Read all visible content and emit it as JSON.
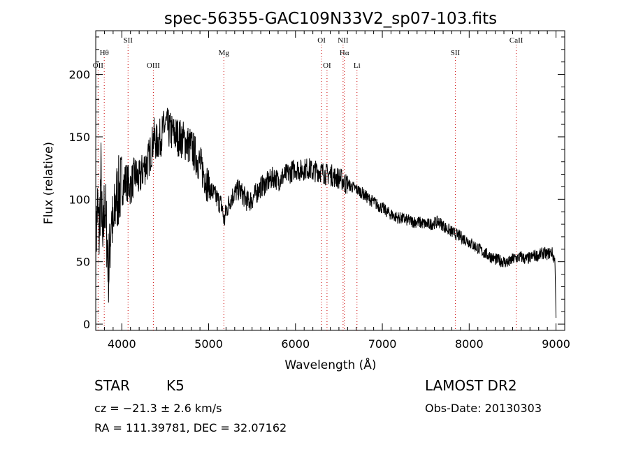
{
  "chart_data": {
    "type": "line",
    "title": "spec-56355-GAC109N33V2_sp07-103.fits",
    "xlabel": "Wavelength (Å)",
    "ylabel": "Flux (relative)",
    "xlim": [
      3700,
      9100
    ],
    "ylim": [
      -5,
      235
    ],
    "x_ticks": [
      4000,
      5000,
      6000,
      7000,
      8000,
      9000
    ],
    "x_tick_labels": [
      "4000",
      "5000",
      "6000",
      "7000",
      "8000",
      "9000"
    ],
    "y_ticks": [
      0,
      50,
      100,
      150,
      200
    ],
    "y_tick_labels": [
      "0",
      "50",
      "100",
      "150",
      "200"
    ],
    "grid": false,
    "line_color": "#000000",
    "marker_color": "#cc0000",
    "series": [
      {
        "x": [
          3700,
          3720,
          3740,
          3760,
          3780,
          3800,
          3820,
          3850,
          3880,
          3900,
          3930,
          3960,
          4000,
          4050,
          4100,
          4150,
          4200,
          4250,
          4300,
          4340,
          4370,
          4400,
          4450,
          4500,
          4550,
          4600,
          4650,
          4700,
          4750,
          4800,
          4850,
          4900,
          4950,
          5000,
          5050,
          5100,
          5150,
          5180,
          5200,
          5250,
          5300,
          5350,
          5400,
          5450,
          5500,
          5550,
          5600,
          5650,
          5700,
          5750,
          5800,
          5850,
          5900,
          5950,
          6000,
          6050,
          6100,
          6150,
          6200,
          6250,
          6300,
          6350,
          6400,
          6450,
          6500,
          6550,
          6560,
          6600,
          6650,
          6700,
          6750,
          6800,
          6850,
          6900,
          6950,
          7000,
          7050,
          7100,
          7150,
          7200,
          7250,
          7300,
          7350,
          7400,
          7450,
          7500,
          7550,
          7600,
          7650,
          7700,
          7750,
          7800,
          7850,
          7900,
          7950,
          8000,
          8050,
          8100,
          8150,
          8200,
          8250,
          8300,
          8350,
          8400,
          8450,
          8500,
          8550,
          8600,
          8650,
          8700,
          8750,
          8800,
          8850,
          8900,
          8950,
          8990,
          9000
        ],
        "y": [
          60,
          95,
          70,
          120,
          55,
          100,
          80,
          40,
          90,
          70,
          100,
          105,
          110,
          115,
          110,
          120,
          115,
          125,
          130,
          140,
          150,
          145,
          150,
          160,
          155,
          152,
          150,
          148,
          145,
          142,
          135,
          128,
          120,
          110,
          105,
          100,
          95,
          82,
          90,
          100,
          105,
          108,
          103,
          98,
          100,
          105,
          110,
          112,
          115,
          118,
          115,
          118,
          120,
          122,
          125,
          123,
          124,
          125,
          122,
          123,
          122,
          120,
          120,
          118,
          117,
          115,
          113,
          112,
          110,
          108,
          106,
          103,
          100,
          98,
          95,
          93,
          90,
          88,
          86,
          85,
          84,
          83,
          82,
          82,
          81,
          80,
          80,
          81,
          82,
          79,
          76,
          74,
          72,
          70,
          68,
          66,
          63,
          61,
          58,
          56,
          54,
          52,
          51,
          50,
          49,
          52,
          53,
          54,
          52,
          53,
          55,
          55,
          57,
          56,
          58,
          50,
          5
        ]
      }
    ],
    "line_markers": [
      {
        "label": "OII",
        "x": 3727,
        "row": 3
      },
      {
        "label": "Hθ",
        "x": 3798,
        "row": 2
      },
      {
        "label": "SII",
        "x": 4072,
        "row": 1
      },
      {
        "label": "OIII",
        "x": 4363,
        "row": 3
      },
      {
        "label": "Mg",
        "x": 5175,
        "row": 2
      },
      {
        "label": "OI",
        "x": 6300,
        "row": 1
      },
      {
        "label": "OI",
        "x": 6363,
        "row": 3
      },
      {
        "label": "NII",
        "x": 6548,
        "row": 1
      },
      {
        "label": "Hα",
        "x": 6563,
        "row": 2
      },
      {
        "label": "Li",
        "x": 6708,
        "row": 3
      },
      {
        "label": "SII",
        "x": 7840,
        "row": 2
      },
      {
        "label": "CaII",
        "x": 8542,
        "row": 1
      }
    ]
  },
  "info": {
    "class": "STAR",
    "subclass": "K5",
    "cz": "cz = −21.3 ± 2.6 km/s",
    "radec": "RA = 111.39781, DEC =  32.07162",
    "survey": "LAMOST DR2",
    "obsdate": "Obs-Date: 20130303"
  }
}
